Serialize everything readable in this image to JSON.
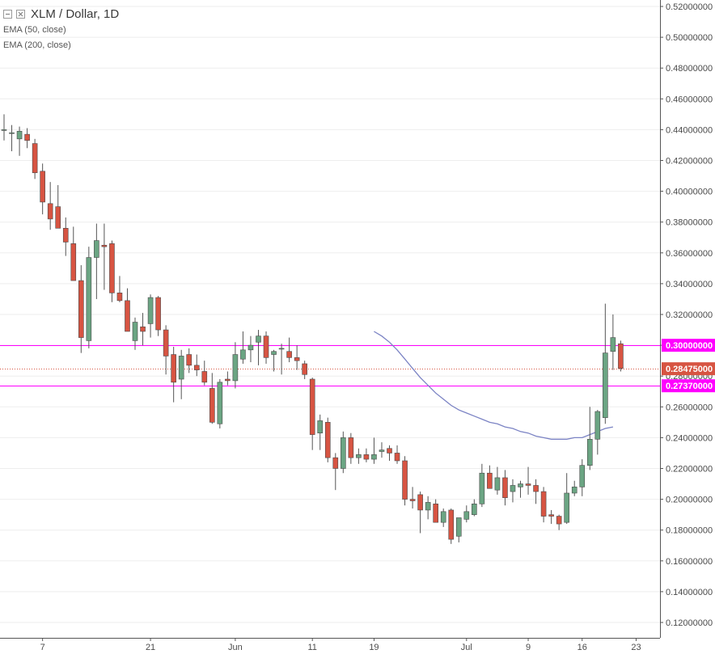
{
  "header": {
    "symbol_title": "XLM / Dollar, 1D",
    "indicators": [
      "EMA (50, close)",
      "EMA (200, close)"
    ]
  },
  "colors": {
    "up": "#6ba583",
    "down": "#d75442",
    "wick": "#555555",
    "ema": "#7b83c4",
    "level": "#ff00ff",
    "last_price": "#d75442",
    "axis_text": "#4a4a4a",
    "grid": "#eeeeee"
  },
  "chart_data": {
    "type": "candlestick",
    "y_axis": {
      "min": 0.11,
      "max": 0.525,
      "ticks": [
        "0.52000000",
        "0.50000000",
        "0.48000000",
        "0.46000000",
        "0.44000000",
        "0.42000000",
        "0.40000000",
        "0.38000000",
        "0.36000000",
        "0.34000000",
        "0.32000000",
        "0.30000000",
        "0.28000000",
        "0.26000000",
        "0.24000000",
        "0.22000000",
        "0.20000000",
        "0.18000000",
        "0.16000000",
        "0.14000000",
        "0.12000000"
      ]
    },
    "x_axis": {
      "labels": [
        {
          "text": "7",
          "index": 5
        },
        {
          "text": "21",
          "index": 19
        },
        {
          "text": "Jun",
          "index": 30
        },
        {
          "text": "11",
          "index": 40
        },
        {
          "text": "19",
          "index": 48
        },
        {
          "text": "Jul",
          "index": 60
        },
        {
          "text": "9",
          "index": 68
        },
        {
          "text": "16",
          "index": 75
        },
        {
          "text": "23",
          "index": 82
        }
      ]
    },
    "candles": [
      [
        0.44,
        0.45,
        0.433,
        0.44
      ],
      [
        0.438,
        0.443,
        0.426,
        0.438
      ],
      [
        0.434,
        0.442,
        0.423,
        0.439
      ],
      [
        0.437,
        0.441,
        0.428,
        0.433
      ],
      [
        0.431,
        0.434,
        0.408,
        0.412
      ],
      [
        0.413,
        0.418,
        0.385,
        0.393
      ],
      [
        0.392,
        0.406,
        0.375,
        0.382
      ],
      [
        0.39,
        0.404,
        0.378,
        0.376
      ],
      [
        0.376,
        0.383,
        0.358,
        0.367
      ],
      [
        0.366,
        0.377,
        0.345,
        0.342
      ],
      [
        0.342,
        0.352,
        0.295,
        0.305
      ],
      [
        0.303,
        0.364,
        0.298,
        0.357
      ],
      [
        0.357,
        0.379,
        0.33,
        0.368
      ],
      [
        0.365,
        0.379,
        0.336,
        0.364
      ],
      [
        0.366,
        0.368,
        0.328,
        0.334
      ],
      [
        0.334,
        0.345,
        0.328,
        0.329
      ],
      [
        0.329,
        0.337,
        0.309,
        0.309
      ],
      [
        0.303,
        0.318,
        0.297,
        0.315
      ],
      [
        0.312,
        0.321,
        0.3,
        0.309
      ],
      [
        0.314,
        0.333,
        0.305,
        0.331
      ],
      [
        0.331,
        0.332,
        0.306,
        0.31
      ],
      [
        0.31,
        0.313,
        0.281,
        0.293
      ],
      [
        0.294,
        0.299,
        0.263,
        0.276
      ],
      [
        0.278,
        0.297,
        0.265,
        0.293
      ],
      [
        0.294,
        0.298,
        0.282,
        0.287
      ],
      [
        0.287,
        0.294,
        0.28,
        0.284
      ],
      [
        0.283,
        0.29,
        0.274,
        0.276
      ],
      [
        0.272,
        0.282,
        0.249,
        0.25
      ],
      [
        0.249,
        0.278,
        0.246,
        0.276
      ],
      [
        0.278,
        0.283,
        0.274,
        0.277
      ],
      [
        0.277,
        0.302,
        0.272,
        0.294
      ],
      [
        0.291,
        0.309,
        0.288,
        0.297
      ],
      [
        0.297,
        0.306,
        0.289,
        0.3
      ],
      [
        0.302,
        0.31,
        0.287,
        0.306
      ],
      [
        0.306,
        0.309,
        0.288,
        0.292
      ],
      [
        0.294,
        0.297,
        0.283,
        0.296
      ],
      [
        0.298,
        0.301,
        0.281,
        0.298
      ],
      [
        0.296,
        0.305,
        0.289,
        0.292
      ],
      [
        0.292,
        0.3,
        0.284,
        0.29
      ],
      [
        0.288,
        0.29,
        0.278,
        0.281
      ],
      [
        0.278,
        0.279,
        0.232,
        0.242
      ],
      [
        0.243,
        0.255,
        0.232,
        0.251
      ],
      [
        0.25,
        0.253,
        0.224,
        0.227
      ],
      [
        0.227,
        0.23,
        0.206,
        0.22
      ],
      [
        0.22,
        0.244,
        0.217,
        0.24
      ],
      [
        0.24,
        0.243,
        0.223,
        0.227
      ],
      [
        0.227,
        0.233,
        0.223,
        0.229
      ],
      [
        0.229,
        0.233,
        0.224,
        0.226
      ],
      [
        0.226,
        0.24,
        0.223,
        0.229
      ],
      [
        0.231,
        0.237,
        0.227,
        0.232
      ],
      [
        0.233,
        0.235,
        0.225,
        0.23
      ],
      [
        0.23,
        0.235,
        0.223,
        0.225
      ],
      [
        0.225,
        0.228,
        0.196,
        0.2
      ],
      [
        0.2,
        0.208,
        0.194,
        0.199
      ],
      [
        0.203,
        0.205,
        0.178,
        0.193
      ],
      [
        0.193,
        0.202,
        0.187,
        0.198
      ],
      [
        0.197,
        0.2,
        0.186,
        0.185
      ],
      [
        0.185,
        0.194,
        0.182,
        0.192
      ],
      [
        0.193,
        0.194,
        0.171,
        0.174
      ],
      [
        0.176,
        0.186,
        0.172,
        0.188
      ],
      [
        0.187,
        0.196,
        0.185,
        0.192
      ],
      [
        0.19,
        0.2,
        0.189,
        0.197
      ],
      [
        0.197,
        0.223,
        0.195,
        0.217
      ],
      [
        0.217,
        0.222,
        0.207,
        0.207
      ],
      [
        0.206,
        0.221,
        0.203,
        0.214
      ],
      [
        0.214,
        0.219,
        0.196,
        0.201
      ],
      [
        0.205,
        0.213,
        0.198,
        0.209
      ],
      [
        0.208,
        0.212,
        0.201,
        0.21
      ],
      [
        0.21,
        0.221,
        0.203,
        0.209
      ],
      [
        0.209,
        0.213,
        0.197,
        0.205
      ],
      [
        0.205,
        0.208,
        0.185,
        0.189
      ],
      [
        0.19,
        0.193,
        0.184,
        0.189
      ],
      [
        0.189,
        0.19,
        0.18,
        0.184
      ],
      [
        0.185,
        0.217,
        0.184,
        0.204
      ],
      [
        0.204,
        0.212,
        0.202,
        0.208
      ],
      [
        0.208,
        0.226,
        0.202,
        0.222
      ],
      [
        0.222,
        0.26,
        0.219,
        0.239
      ],
      [
        0.239,
        0.258,
        0.229,
        0.257
      ],
      [
        0.253,
        0.327,
        0.249,
        0.295
      ],
      [
        0.296,
        0.32,
        0.284,
        0.305
      ],
      [
        0.301,
        0.303,
        0.283,
        0.285
      ]
    ],
    "series": [
      {
        "kind": "ema",
        "start_index": 48,
        "values": [
          0.309,
          0.306,
          0.302,
          0.297,
          0.291,
          0.285,
          0.279,
          0.274,
          0.269,
          0.265,
          0.261,
          0.258,
          0.256,
          0.254,
          0.252,
          0.25,
          0.249,
          0.247,
          0.246,
          0.244,
          0.243,
          0.241,
          0.24,
          0.239,
          0.239,
          0.239,
          0.24,
          0.24,
          0.242,
          0.244,
          0.246,
          0.247
        ]
      }
    ],
    "price_levels": [
      {
        "value": 0.3,
        "label": "0.30000000",
        "style": "solid"
      },
      {
        "value": 0.28475,
        "label": "0.28475000",
        "style": "dotted"
      },
      {
        "value": 0.2737,
        "label": "0.27370000",
        "style": "solid"
      }
    ]
  }
}
